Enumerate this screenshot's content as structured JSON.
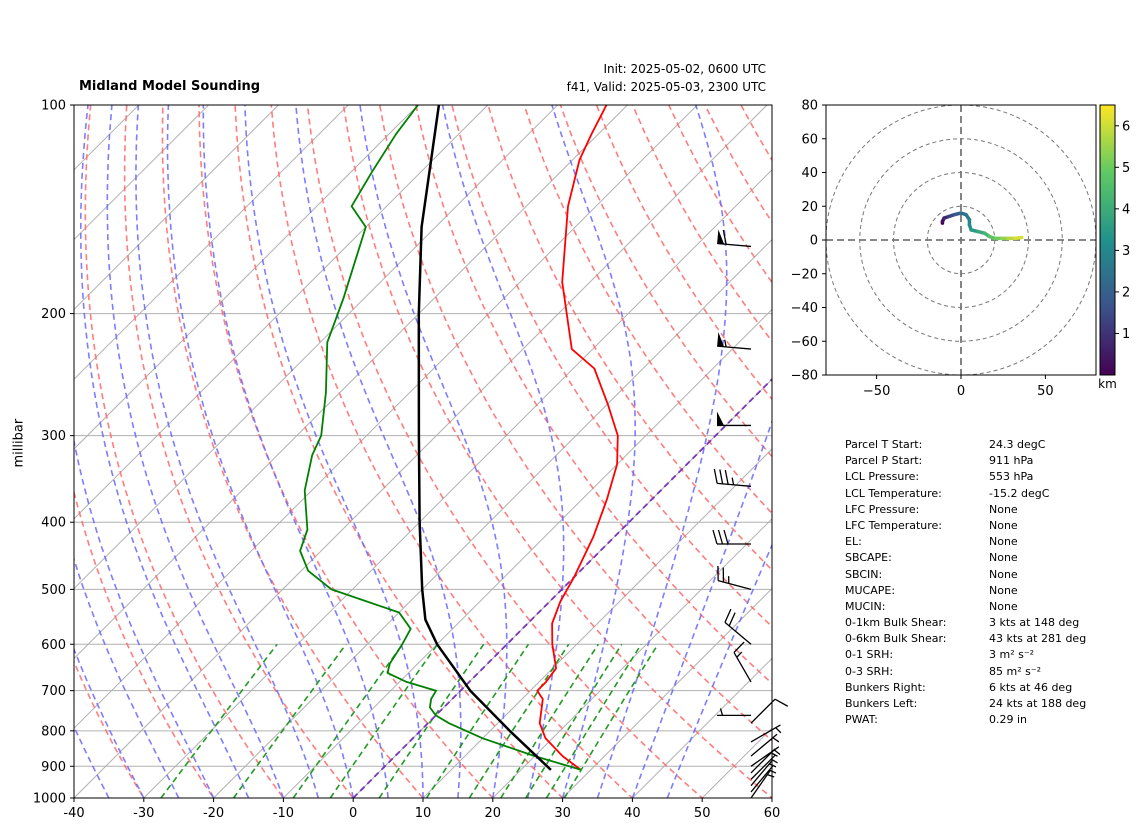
{
  "title": "Midland Model Sounding",
  "init_text": "Init: 2025-05-02, 0600 UTC",
  "valid_text": "f41, Valid: 2025-05-03, 2300 UTC",
  "y_label": "millibar",
  "colorbar_unit": "km",
  "colors": {
    "temperature": "#ff0000",
    "dewpoint": "#008000",
    "parcel": "#000000",
    "dry_adiabats": "#ff6666",
    "moist_adiabats": "#6666ff",
    "mixing_ratio": "#229922",
    "zero_isotherm": "#7733bb",
    "isotherms": "#b0b0b0"
  },
  "chart_data": [
    {
      "type": "line",
      "chart": "skew-t log-p",
      "xlabel": "",
      "ylabel": "millibar",
      "xlim": [
        -40,
        60
      ],
      "ylim": [
        1000,
        100
      ],
      "y_scale": "log",
      "x_ticks": [
        "-40",
        "-30",
        "-20",
        "-10",
        "0",
        "10",
        "20",
        "30",
        "40",
        "50",
        "60"
      ],
      "y_ticks": [
        "100",
        "200",
        "300",
        "400",
        "500",
        "600",
        "700",
        "800",
        "900",
        "1000"
      ],
      "grid": true,
      "series": [
        {
          "key": "temperature",
          "points": [
            [
              910,
              28.5
            ],
            [
              870,
              24
            ],
            [
              820,
              19
            ],
            [
              780,
              16
            ],
            [
              720,
              13
            ],
            [
              700,
              11
            ],
            [
              680,
              11
            ],
            [
              650,
              10.5
            ],
            [
              600,
              6.5
            ],
            [
              560,
              3.5
            ],
            [
              520,
              1.5
            ],
            [
              480,
              0
            ],
            [
              420,
              -3
            ],
            [
              370,
              -6.5
            ],
            [
              330,
              -10
            ],
            [
              300,
              -14
            ],
            [
              270,
              -20
            ],
            [
              240,
              -27
            ],
            [
              225,
              -33
            ],
            [
              180,
              -44
            ],
            [
              140,
              -54
            ],
            [
              120,
              -59
            ],
            [
              110,
              -61
            ],
            [
              100,
              -63
            ]
          ]
        },
        {
          "key": "dewpoint",
          "points": [
            [
              910,
              28.5
            ],
            [
              870,
              20
            ],
            [
              820,
              10
            ],
            [
              780,
              3
            ],
            [
              760,
              0
            ],
            [
              740,
              -2
            ],
            [
              720,
              -3
            ],
            [
              700,
              -3.5
            ],
            [
              680,
              -9
            ],
            [
              660,
              -13
            ],
            [
              640,
              -14
            ],
            [
              600,
              -15
            ],
            [
              570,
              -16
            ],
            [
              540,
              -20
            ],
            [
              500,
              -33
            ],
            [
              470,
              -39
            ],
            [
              440,
              -43
            ],
            [
              410,
              -45
            ],
            [
              360,
              -51
            ],
            [
              320,
              -55
            ],
            [
              300,
              -56.5
            ],
            [
              260,
              -62
            ],
            [
              220,
              -69
            ],
            [
              190,
              -73
            ],
            [
              150,
              -80
            ],
            [
              140,
              -85
            ],
            [
              125,
              -87
            ],
            [
              110,
              -89
            ],
            [
              100,
              -90
            ]
          ]
        },
        {
          "key": "parcel",
          "points": [
            [
              911,
              24.3
            ],
            [
              800,
              12.8
            ],
            [
              700,
              1.4
            ],
            [
              600,
              -10
            ],
            [
              553,
              -15.2
            ],
            [
              500,
              -20
            ],
            [
              400,
              -30
            ],
            [
              300,
              -42.5
            ],
            [
              200,
              -60
            ],
            [
              150,
              -72
            ],
            [
              100,
              -87
            ]
          ]
        }
      ],
      "wind_barbs": [
        {
          "p": 160,
          "spd": 60,
          "dir": 275
        },
        {
          "p": 225,
          "spd": 55,
          "dir": 275
        },
        {
          "p": 290,
          "spd": 50,
          "dir": 270
        },
        {
          "p": 355,
          "spd": 35,
          "dir": 275
        },
        {
          "p": 430,
          "spd": 30,
          "dir": 270
        },
        {
          "p": 500,
          "spd": 25,
          "dir": 285
        },
        {
          "p": 600,
          "spd": 20,
          "dir": 310
        },
        {
          "p": 680,
          "spd": 15,
          "dir": 330
        },
        {
          "p": 760,
          "spd": 5,
          "dir": 270
        },
        {
          "p": 780,
          "spd": 10,
          "dir": 45
        },
        {
          "p": 830,
          "spd": 5,
          "dir": 60
        },
        {
          "p": 870,
          "spd": 5,
          "dir": 50
        },
        {
          "p": 900,
          "spd": 5,
          "dir": 55
        },
        {
          "p": 920,
          "spd": 5,
          "dir": 45
        },
        {
          "p": 940,
          "spd": 5,
          "dir": 45
        },
        {
          "p": 960,
          "spd": 5,
          "dir": 40
        },
        {
          "p": 980,
          "spd": 5,
          "dir": 40
        },
        {
          "p": 1000,
          "spd": 5,
          "dir": 35
        }
      ]
    },
    {
      "type": "scatter",
      "chart": "hodograph",
      "xlim": [
        -80,
        80
      ],
      "ylim": [
        -80,
        80
      ],
      "x_ticks": [
        "−50",
        "0",
        "50"
      ],
      "y_ticks": [
        "80",
        "60",
        "40",
        "20",
        "0",
        "−20",
        "−40",
        "−60",
        "−80"
      ],
      "rings": [
        20,
        40,
        60,
        80
      ],
      "colorbar_ticks": [
        "1",
        "2",
        "3",
        "4",
        "5",
        "6"
      ],
      "colorbar_range": [
        0,
        6.5
      ],
      "points": [
        [
          -11,
          10,
          0
        ],
        [
          -11,
          11,
          0.3
        ],
        [
          -10,
          13,
          0.8
        ],
        [
          -7,
          14,
          1.3
        ],
        [
          -4,
          15,
          1.8
        ],
        [
          0,
          16,
          2.3
        ],
        [
          3,
          15,
          2.6
        ],
        [
          5,
          12,
          2.9
        ],
        [
          5,
          9,
          3.2
        ],
        [
          6,
          6,
          3.5
        ],
        [
          10,
          5,
          3.9
        ],
        [
          14,
          4,
          4.3
        ],
        [
          17,
          2,
          4.7
        ],
        [
          20,
          1,
          5.0
        ],
        [
          24,
          1,
          5.4
        ],
        [
          28,
          1,
          5.8
        ],
        [
          32,
          1,
          6.1
        ],
        [
          36,
          1.5,
          6.4
        ]
      ]
    }
  ],
  "parameters": [
    {
      "label": "Parcel T Start:",
      "value": "24.3 degC"
    },
    {
      "label": "Parcel P Start:",
      "value": "911 hPa"
    },
    {
      "label": "LCL Pressure:",
      "value": "553 hPa"
    },
    {
      "label": "LCL Temperature:",
      "value": "-15.2 degC"
    },
    {
      "label": "LFC Pressure:",
      "value": "None"
    },
    {
      "label": "LFC Temperature:",
      "value": "None"
    },
    {
      "label": "EL:",
      "value": "None"
    },
    {
      "label": "SBCAPE:",
      "value": "None"
    },
    {
      "label": "SBCIN:",
      "value": "None"
    },
    {
      "label": "MUCAPE:",
      "value": "None"
    },
    {
      "label": "MUCIN:",
      "value": "None"
    },
    {
      "label": "0-1km Bulk Shear:",
      "value": "3 kts at 148 deg"
    },
    {
      "label": "0-6km Bulk Shear:",
      "value": "43 kts at 281 deg"
    },
    {
      "label": "0-1 SRH:",
      "value": "3 m² s⁻²"
    },
    {
      "label": "0-3 SRH:",
      "value": "85 m² s⁻²"
    },
    {
      "label": "Bunkers Right:",
      "value": "6 kts at 46 deg"
    },
    {
      "label": "Bunkers Left:",
      "value": "24 kts at 188 deg"
    },
    {
      "label": "PWAT:",
      "value": "0.29 in"
    }
  ]
}
